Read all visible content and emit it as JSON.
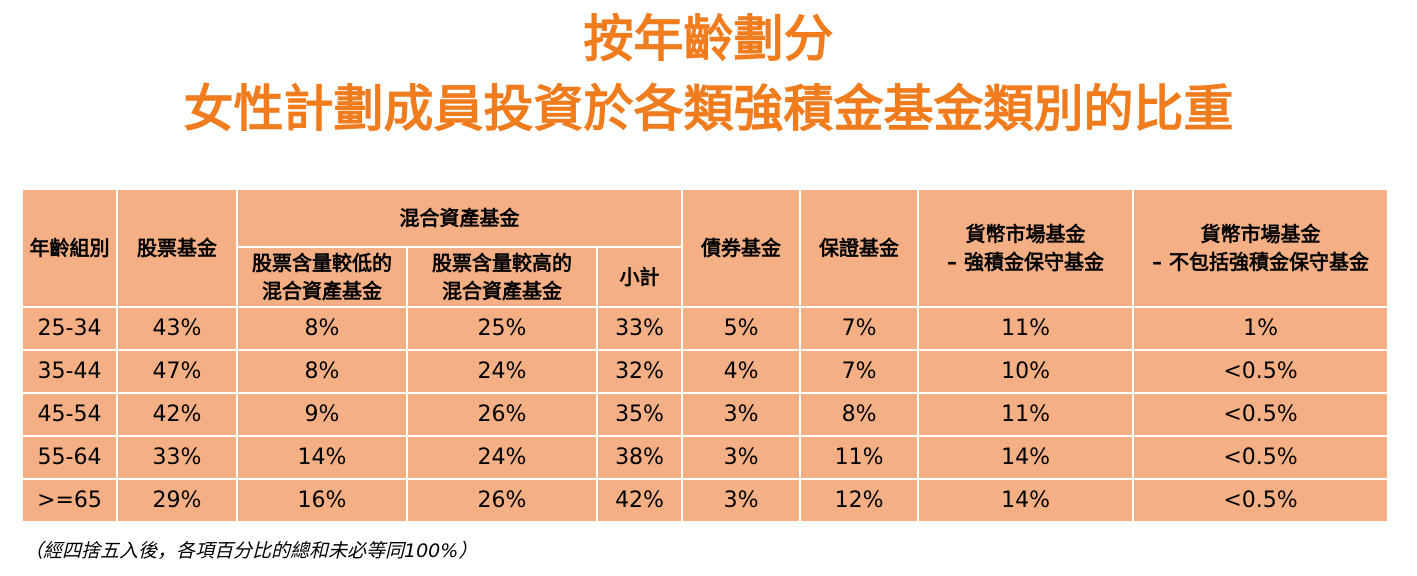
{
  "title": {
    "line1": "按年齡劃分",
    "line2": "女性計劃成員投資於各類強積金基金類別的比重"
  },
  "colors": {
    "title": "#f07c1e",
    "cell_background": "#f4b084",
    "border": "#ffffff"
  },
  "table": {
    "headers": {
      "age_group": "年齡組別",
      "equity": "股票基金",
      "mixed_assets": "混合資產基金",
      "mixed_low_line1": "股票含量較低的",
      "mixed_low_line2": "混合資產基金",
      "mixed_high_line1": "股票含量較高的",
      "mixed_high_line2": "混合資產基金",
      "subtotal": "小計",
      "bond": "債券基金",
      "guaranteed": "保證基金",
      "mmf_mpf_line1": "貨幣市場基金",
      "mmf_mpf_line2": "– 強積金保守基金",
      "mmf_other_line1": "貨幣市場基金",
      "mmf_other_line2": "– 不包括強積金保守基金"
    },
    "rows": [
      [
        "25-34",
        "43%",
        "8%",
        "25%",
        "33%",
        "5%",
        "7%",
        "11%",
        "1%"
      ],
      [
        "35-44",
        "47%",
        "8%",
        "24%",
        "32%",
        "4%",
        "7%",
        "10%",
        "<0.5%"
      ],
      [
        "45-54",
        "42%",
        "9%",
        "26%",
        "35%",
        "3%",
        "8%",
        "11%",
        "<0.5%"
      ],
      [
        "55-64",
        "33%",
        "14%",
        "24%",
        "38%",
        "3%",
        "11%",
        "14%",
        "<0.5%"
      ],
      [
        ">=65",
        "29%",
        "16%",
        "26%",
        "42%",
        "3%",
        "12%",
        "14%",
        "<0.5%"
      ]
    ]
  },
  "footnote": "（經四捨五入後，各項百分比的總和未必等同100%）"
}
